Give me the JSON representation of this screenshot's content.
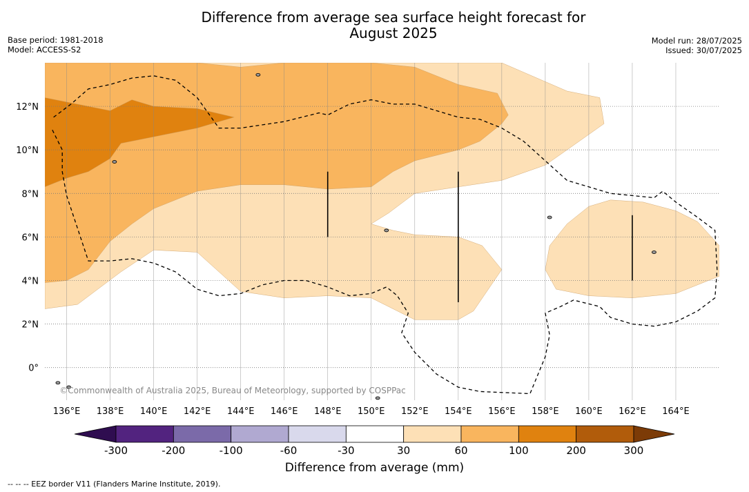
{
  "title_line1": "Difference from average sea surface height forecast for",
  "title_line2": "August 2025",
  "meta_left": {
    "base_period": "Base period: 1981-2018",
    "model": "Model: ACCESS-S2"
  },
  "meta_right": {
    "model_run": "Model run: 28/07/2025",
    "issued": "Issued: 30/07/2025"
  },
  "watermark": "©Commonwealth of Australia 2025, Bureau of Meteorology, supported by COSPPac",
  "footnote": "--  --  -- EEZ border V11 (Flanders Marine Institute, 2019).",
  "chart_data": {
    "type": "heatmap",
    "x_ticks": [
      "136°E",
      "138°E",
      "140°E",
      "142°E",
      "144°E",
      "146°E",
      "148°E",
      "150°E",
      "152°E",
      "154°E",
      "156°E",
      "158°E",
      "160°E",
      "162°E",
      "164°E"
    ],
    "x_tick_values": [
      136,
      138,
      140,
      142,
      144,
      146,
      148,
      150,
      152,
      154,
      156,
      158,
      160,
      162,
      164
    ],
    "y_ticks": [
      "0°",
      "2°N",
      "4°N",
      "6°N",
      "8°N",
      "10°N",
      "12°N"
    ],
    "y_tick_values": [
      0,
      2,
      4,
      6,
      8,
      10,
      12
    ],
    "xlim": [
      135,
      166
    ],
    "ylim": [
      -1.5,
      14
    ],
    "grid": true,
    "colorbar": {
      "label": "Difference from average (mm)",
      "tick_labels": [
        "-300",
        "-200",
        "-100",
        "-60",
        "-30",
        "30",
        "60",
        "100",
        "200",
        "300"
      ],
      "colors": [
        "#52237f",
        "#7b6aa9",
        "#b0a9d1",
        "#d9d9ec",
        "#ffffff",
        "#fde0b6",
        "#f9b55e",
        "#e0820f",
        "#b15c0b"
      ],
      "under_color": "#2f0d50",
      "over_color": "#7c3b07"
    },
    "levels": [
      {
        "range": "30-60",
        "color": "#fde0b6",
        "polygons": [
          [
            [
              135,
              2.7
            ],
            [
              136.5,
              2.9
            ],
            [
              138.5,
              4.4
            ],
            [
              140,
              5.4
            ],
            [
              142,
              5.3
            ],
            [
              144,
              3.5
            ],
            [
              146,
              3.2
            ],
            [
              148,
              3.3
            ],
            [
              150,
              3.2
            ],
            [
              152,
              2.2
            ],
            [
              154,
              2.2
            ],
            [
              154.7,
              2.6
            ],
            [
              156,
              4.5
            ],
            [
              155.1,
              5.6
            ],
            [
              154,
              6
            ],
            [
              152,
              6.1
            ],
            [
              151,
              6.3
            ],
            [
              150,
              6.6
            ],
            [
              150.8,
              7.1
            ],
            [
              152,
              8
            ],
            [
              154,
              8.3
            ],
            [
              156,
              8.6
            ],
            [
              158,
              9.3
            ],
            [
              159,
              10
            ],
            [
              160.7,
              11.2
            ],
            [
              160.5,
              12.4
            ],
            [
              159,
              12.7
            ],
            [
              156,
              14
            ],
            [
              135,
              14
            ]
          ],
          [
            [
              158,
              4.5
            ],
            [
              158.2,
              5.6
            ],
            [
              159,
              6.6
            ],
            [
              160,
              7.4
            ],
            [
              161,
              7.7
            ],
            [
              162.5,
              7.6
            ],
            [
              164,
              7.2
            ],
            [
              165,
              6.7
            ],
            [
              166,
              5.6
            ],
            [
              166,
              4.2
            ],
            [
              165,
              3.8
            ],
            [
              164,
              3.4
            ],
            [
              162,
              3.2
            ],
            [
              160,
              3.3
            ],
            [
              158.5,
              3.6
            ]
          ]
        ]
      },
      {
        "range": "60-100",
        "color": "#f9b55e",
        "polygons": [
          [
            [
              135,
              3.9
            ],
            [
              136,
              4
            ],
            [
              137,
              4.5
            ],
            [
              138,
              5.8
            ],
            [
              139,
              6.6
            ],
            [
              140,
              7.3
            ],
            [
              142,
              8.1
            ],
            [
              144,
              8.4
            ],
            [
              146,
              8.4
            ],
            [
              148,
              8.2
            ],
            [
              150,
              8.3
            ],
            [
              151,
              9
            ],
            [
              152,
              9.5
            ],
            [
              154,
              10
            ],
            [
              155,
              10.4
            ],
            [
              156,
              11.2
            ],
            [
              156.3,
              11.6
            ],
            [
              155.8,
              12.6
            ],
            [
              154,
              13
            ],
            [
              152,
              13.8
            ],
            [
              150,
              14
            ],
            [
              146,
              14
            ],
            [
              144,
              13.8
            ],
            [
              142,
              14
            ],
            [
              135,
              14
            ]
          ]
        ]
      },
      {
        "range": "100-200",
        "color": "#e0820f",
        "polygons": [
          [
            [
              135,
              8.3
            ],
            [
              136,
              8.7
            ],
            [
              137,
              9
            ],
            [
              138,
              9.6
            ],
            [
              138.5,
              10.3
            ],
            [
              140,
              10.6
            ],
            [
              142,
              11
            ],
            [
              143.7,
              11.5
            ],
            [
              142,
              11.9
            ],
            [
              140,
              12
            ],
            [
              139,
              12.3
            ],
            [
              138,
              11.8
            ],
            [
              137,
              12
            ],
            [
              135,
              12.4
            ]
          ]
        ]
      }
    ],
    "contour_lines_30mm": [
      [
        [
          135,
          11.2
        ],
        [
          136,
          12.2
        ],
        [
          137,
          12.8
        ],
        [
          138,
          13
        ],
        [
          139,
          13.3
        ],
        [
          140,
          13.4
        ],
        [
          141,
          13.2
        ],
        [
          142,
          12.4
        ],
        [
          143,
          11
        ],
        [
          144,
          11
        ],
        [
          146,
          11.3
        ],
        [
          147,
          11.5
        ],
        [
          148,
          11.6
        ],
        [
          149,
          12.1
        ],
        [
          150,
          12.3
        ],
        [
          151,
          12.1
        ],
        [
          152,
          12.1
        ],
        [
          153,
          11.8
        ],
        [
          154,
          11.5
        ],
        [
          155,
          11.4
        ],
        [
          156,
          11
        ],
        [
          157,
          10.4
        ],
        [
          158,
          9.5
        ],
        [
          159,
          8.6
        ],
        [
          160,
          8.3
        ],
        [
          161,
          8
        ],
        [
          162,
          7.9
        ],
        [
          163,
          7.8
        ],
        [
          163.5,
          8
        ]
      ],
      [
        [
          165.5,
          5.9
        ],
        [
          165.5,
          4.5
        ],
        [
          165.5,
          3.2
        ],
        [
          165,
          2.8
        ],
        [
          164,
          2.2
        ],
        [
          163,
          1.9
        ],
        [
          162,
          2
        ],
        [
          161,
          2.3
        ],
        [
          160.5,
          2.9
        ],
        [
          159.3,
          3.2
        ],
        [
          158.7,
          2.8
        ],
        [
          158,
          2.5
        ],
        [
          158.1,
          1.5
        ],
        [
          158,
          0.5
        ],
        [
          157.5,
          -0.8
        ],
        [
          155,
          -0.9
        ],
        [
          154,
          -0.8
        ],
        [
          153,
          -0.2
        ],
        [
          152,
          0.8
        ],
        [
          151.5,
          1.7
        ],
        [
          151.7,
          2.5
        ],
        [
          151.2,
          3.3
        ],
        [
          150.7,
          3.7
        ],
        [
          150,
          3.4
        ],
        [
          149,
          3.3
        ],
        [
          148,
          3.7
        ],
        [
          147,
          4
        ],
        [
          146,
          4
        ],
        [
          145,
          3.8
        ],
        [
          144,
          3.4
        ],
        [
          143,
          3.3
        ],
        [
          142,
          3.6
        ],
        [
          141,
          4.4
        ],
        [
          140,
          4.8
        ],
        [
          139,
          5
        ],
        [
          138,
          4.9
        ],
        [
          137,
          4.9
        ],
        [
          136.5,
          6.4
        ],
        [
          136,
          7.9
        ],
        [
          135.8,
          9
        ],
        [
          135.8,
          10
        ],
        [
          135.3,
          11
        ]
      ]
    ],
    "eez_lines": [
      [
        [
          135.4,
          11.5
        ],
        [
          136.2,
          12.1
        ],
        [
          137,
          12.8
        ],
        [
          138,
          13
        ],
        [
          139,
          13.3
        ],
        [
          140,
          13.4
        ],
        [
          141,
          13.2
        ],
        [
          142,
          12.4
        ],
        [
          143,
          11
        ],
        [
          144,
          11
        ],
        [
          146,
          11.3
        ],
        [
          147.6,
          11.7
        ],
        [
          148,
          11.6
        ],
        [
          149,
          12.1
        ],
        [
          150,
          12.3
        ],
        [
          151,
          12.1
        ],
        [
          152,
          12.1
        ],
        [
          153,
          11.8
        ],
        [
          154,
          11.5
        ],
        [
          155,
          11.4
        ],
        [
          156,
          11
        ],
        [
          157,
          10.4
        ],
        [
          158,
          9.5
        ],
        [
          159,
          8.6
        ],
        [
          160,
          8.3
        ],
        [
          161,
          8
        ],
        [
          162,
          7.9
        ],
        [
          163,
          7.8
        ],
        [
          163.4,
          8.1
        ],
        [
          164,
          7.6
        ],
        [
          165,
          6.9
        ],
        [
          165.8,
          6.3
        ],
        [
          165.9,
          4.5
        ],
        [
          165.8,
          3.2
        ],
        [
          165,
          2.6
        ],
        [
          164,
          2.1
        ],
        [
          163,
          1.9
        ],
        [
          162,
          2
        ],
        [
          161,
          2.3
        ],
        [
          160.5,
          2.8
        ],
        [
          159.3,
          3.1
        ],
        [
          158.7,
          2.8
        ],
        [
          158,
          2.5
        ],
        [
          158.2,
          1.5
        ],
        [
          158,
          0.5
        ],
        [
          157.3,
          -1.2
        ],
        [
          155,
          -1.1
        ],
        [
          154,
          -0.9
        ],
        [
          153,
          -0.3
        ],
        [
          152,
          0.7
        ],
        [
          151.4,
          1.6
        ],
        [
          151.7,
          2.5
        ],
        [
          151.2,
          3.3
        ],
        [
          150.7,
          3.7
        ],
        [
          150,
          3.4
        ],
        [
          149,
          3.3
        ],
        [
          148,
          3.7
        ],
        [
          147,
          4
        ],
        [
          146,
          4
        ],
        [
          145,
          3.8
        ],
        [
          144,
          3.4
        ],
        [
          143,
          3.3
        ],
        [
          142,
          3.6
        ],
        [
          141,
          4.4
        ],
        [
          140,
          4.8
        ],
        [
          139,
          5
        ],
        [
          138,
          4.9
        ],
        [
          137,
          4.9
        ],
        [
          136.5,
          6.4
        ],
        [
          136,
          7.9
        ],
        [
          135.8,
          9
        ],
        [
          135.8,
          10
        ],
        [
          135.3,
          11
        ]
      ]
    ],
    "vertical_markers": [
      {
        "lon": 148,
        "lat_from": 6,
        "lat_to": 9
      },
      {
        "lon": 154,
        "lat_from": 3,
        "lat_to": 9
      },
      {
        "lon": 162,
        "lat_from": 4,
        "lat_to": 7
      }
    ]
  }
}
